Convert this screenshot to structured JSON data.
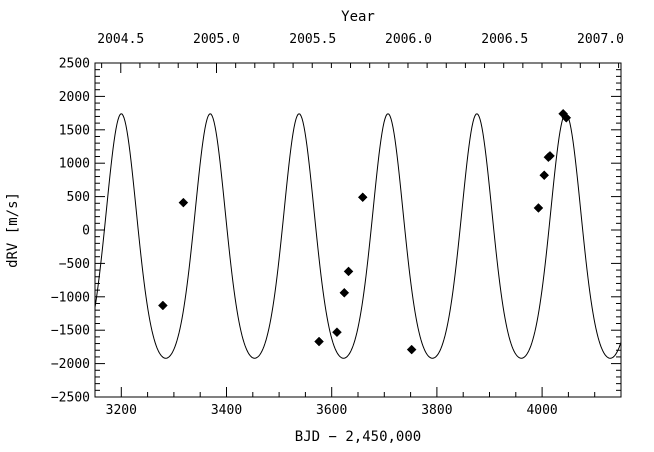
{
  "chart_data": {
    "type": "scatter",
    "xlabel": "BJD − 2,450,000",
    "ylabel": "dRV [m/s]",
    "top_axis_label": "Year",
    "xlim": [
      3150,
      4150
    ],
    "ylim": [
      -2500,
      2500
    ],
    "x_ticks": [
      "3200",
      "3400",
      "3600",
      "3800",
      "4000"
    ],
    "x_tick_values": [
      3200,
      3400,
      3600,
      3800,
      4000
    ],
    "y_ticks": [
      "2500",
      "2000",
      "1500",
      "1000",
      "500",
      "0",
      "−500",
      "−1000",
      "−1500",
      "−2000",
      "−2500"
    ],
    "y_tick_values": [
      2500,
      2000,
      1500,
      1000,
      500,
      0,
      -500,
      -1000,
      -1500,
      -2000,
      -2500
    ],
    "top_ticks": [
      "2004.5",
      "2005.0",
      "2005.5",
      "2006.0",
      "2006.5",
      "2007.0"
    ],
    "top_tick_values": [
      3199,
      3381,
      3564,
      3746,
      3929,
      4111
    ],
    "grid": false,
    "model": {
      "type": "line",
      "period": 169,
      "peak_x": 3200,
      "max": 1740,
      "min": -1920,
      "eccentricity_shape": 0.35
    },
    "series": [
      {
        "marker": "diamond",
        "x": [
          3279,
          3318,
          3576,
          3610,
          3624,
          3632,
          3659,
          3752,
          3993,
          4004,
          4012,
          4015,
          4040,
          4046
        ],
        "y": [
          -1130,
          410,
          -1670,
          -1530,
          -940,
          -620,
          490,
          -1790,
          330,
          820,
          1090,
          1110,
          1740,
          1680
        ]
      }
    ]
  }
}
